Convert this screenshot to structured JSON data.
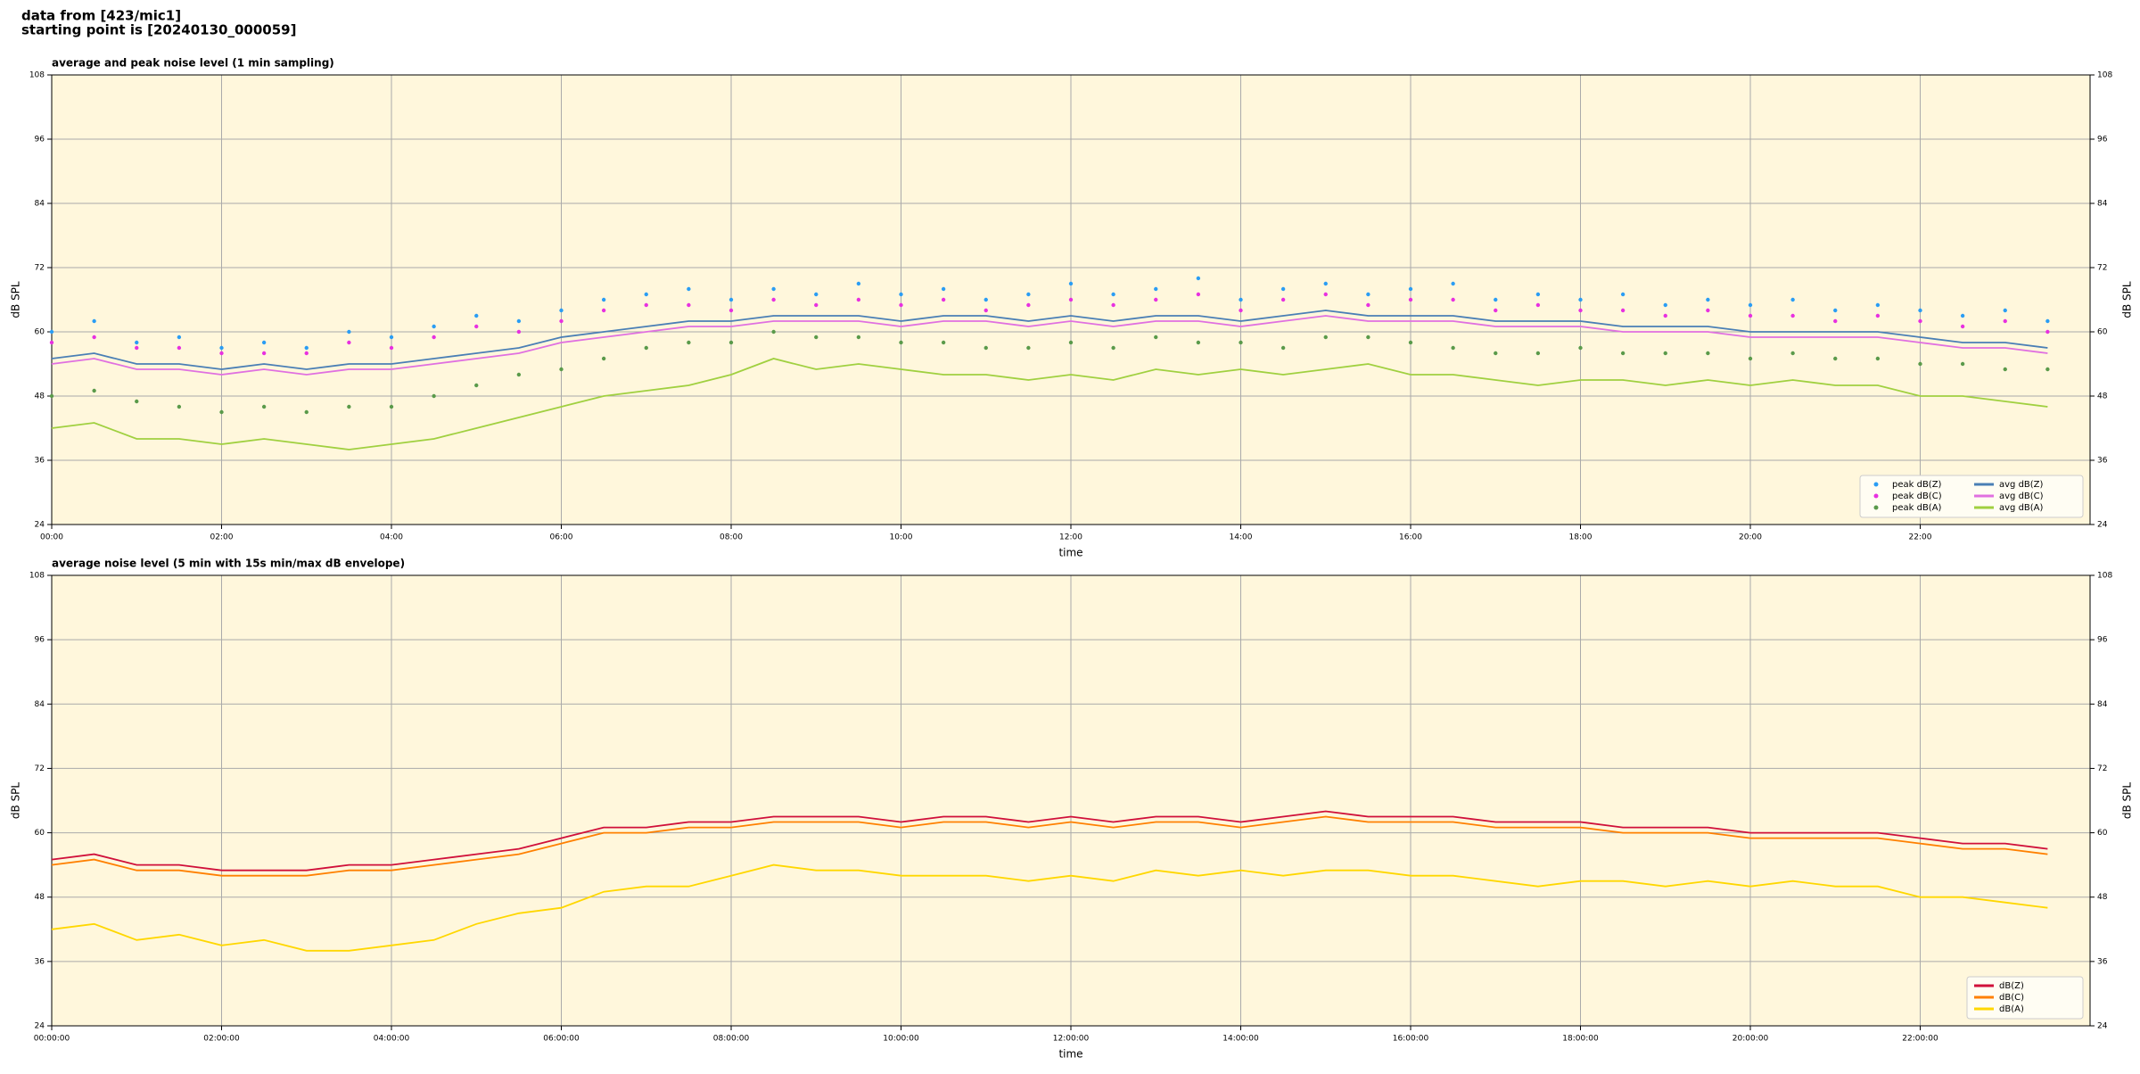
{
  "header": [
    "data from [423/mic1]",
    "starting point is [20240130_000059]"
  ],
  "chart_data": [
    {
      "type": "line",
      "title": "average and peak noise level (1 min sampling)",
      "xlabel": "time",
      "ylabel": "dB SPL",
      "x": [
        "00:00",
        "00:30",
        "01:00",
        "01:30",
        "02:00",
        "02:30",
        "03:00",
        "03:30",
        "04:00",
        "04:30",
        "05:00",
        "05:30",
        "06:00",
        "06:30",
        "07:00",
        "07:30",
        "08:00",
        "08:30",
        "09:00",
        "09:30",
        "10:00",
        "10:30",
        "11:00",
        "11:30",
        "12:00",
        "12:30",
        "13:00",
        "13:30",
        "14:00",
        "14:30",
        "15:00",
        "15:30",
        "16:00",
        "16:30",
        "17:00",
        "17:30",
        "18:00",
        "18:30",
        "19:00",
        "19:30",
        "20:00",
        "20:30",
        "21:00",
        "21:30",
        "22:00",
        "22:30",
        "23:00",
        "23:30"
      ],
      "xlim": [
        "00:00",
        "24:00"
      ],
      "xticks": [
        "00:00",
        "02:00",
        "04:00",
        "06:00",
        "08:00",
        "10:00",
        "12:00",
        "14:00",
        "16:00",
        "18:00",
        "20:00",
        "22:00"
      ],
      "ylim": [
        24,
        108
      ],
      "yticks": [
        24,
        36,
        48,
        60,
        72,
        84,
        96,
        108
      ],
      "grid": true,
      "legend": "lower right",
      "legend_columns": 2,
      "series": [
        {
          "name": "peak dB(Z)",
          "type": "scatter",
          "color": "#2a9df4",
          "values": [
            60,
            62,
            58,
            59,
            57,
            58,
            57,
            60,
            59,
            61,
            63,
            62,
            64,
            66,
            67,
            68,
            66,
            68,
            67,
            69,
            67,
            68,
            66,
            67,
            69,
            67,
            68,
            70,
            66,
            68,
            69,
            67,
            68,
            69,
            66,
            67,
            66,
            67,
            65,
            66,
            65,
            66,
            64,
            65,
            64,
            63,
            64,
            62
          ]
        },
        {
          "name": "peak dB(C)",
          "type": "scatter",
          "color": "#e830e0",
          "values": [
            58,
            59,
            57,
            57,
            56,
            56,
            56,
            58,
            57,
            59,
            61,
            60,
            62,
            64,
            65,
            65,
            64,
            66,
            65,
            66,
            65,
            66,
            64,
            65,
            66,
            65,
            66,
            67,
            64,
            66,
            67,
            65,
            66,
            66,
            64,
            65,
            64,
            64,
            63,
            64,
            63,
            63,
            62,
            63,
            62,
            61,
            62,
            60
          ]
        },
        {
          "name": "peak dB(A)",
          "type": "scatter",
          "color": "#5a9a4a",
          "values": [
            48,
            49,
            47,
            46,
            45,
            46,
            45,
            46,
            46,
            48,
            50,
            52,
            53,
            55,
            57,
            58,
            58,
            60,
            59,
            59,
            58,
            58,
            57,
            57,
            58,
            57,
            59,
            58,
            58,
            57,
            59,
            59,
            58,
            57,
            56,
            56,
            57,
            56,
            56,
            56,
            55,
            56,
            55,
            55,
            54,
            54,
            53,
            53
          ]
        },
        {
          "name": "avg dB(Z)",
          "type": "line",
          "color": "#4a7fb5",
          "values": [
            55,
            56,
            54,
            54,
            53,
            54,
            53,
            54,
            54,
            55,
            56,
            57,
            59,
            60,
            61,
            62,
            62,
            63,
            63,
            63,
            62,
            63,
            63,
            62,
            63,
            62,
            63,
            63,
            62,
            63,
            64,
            63,
            63,
            63,
            62,
            62,
            62,
            61,
            61,
            61,
            60,
            60,
            60,
            60,
            59,
            58,
            58,
            57
          ]
        },
        {
          "name": "avg dB(C)",
          "type": "line",
          "color": "#e070e0",
          "values": [
            54,
            55,
            53,
            53,
            52,
            53,
            52,
            53,
            53,
            54,
            55,
            56,
            58,
            59,
            60,
            61,
            61,
            62,
            62,
            62,
            61,
            62,
            62,
            61,
            62,
            61,
            62,
            62,
            61,
            62,
            63,
            62,
            62,
            62,
            61,
            61,
            61,
            60,
            60,
            60,
            59,
            59,
            59,
            59,
            58,
            57,
            57,
            56
          ]
        },
        {
          "name": "avg dB(A)",
          "type": "line",
          "color": "#a0d040",
          "values": [
            42,
            43,
            40,
            40,
            39,
            40,
            39,
            38,
            39,
            40,
            42,
            44,
            46,
            48,
            49,
            50,
            52,
            55,
            53,
            54,
            53,
            52,
            52,
            51,
            52,
            51,
            53,
            52,
            53,
            52,
            53,
            54,
            52,
            52,
            51,
            50,
            51,
            51,
            50,
            51,
            50,
            51,
            50,
            50,
            48,
            48,
            47,
            46
          ]
        }
      ]
    },
    {
      "type": "line",
      "title": "average noise level (5 min with 15s min/max dB envelope)",
      "xlabel": "time",
      "ylabel": "dB SPL",
      "x": [
        "00:00:00",
        "00:30:00",
        "01:00:00",
        "01:30:00",
        "02:00:00",
        "02:30:00",
        "03:00:00",
        "03:30:00",
        "04:00:00",
        "04:30:00",
        "05:00:00",
        "05:30:00",
        "06:00:00",
        "06:30:00",
        "07:00:00",
        "07:30:00",
        "08:00:00",
        "08:30:00",
        "09:00:00",
        "09:30:00",
        "10:00:00",
        "10:30:00",
        "11:00:00",
        "11:30:00",
        "12:00:00",
        "12:30:00",
        "13:00:00",
        "13:30:00",
        "14:00:00",
        "14:30:00",
        "15:00:00",
        "15:30:00",
        "16:00:00",
        "16:30:00",
        "17:00:00",
        "17:30:00",
        "18:00:00",
        "18:30:00",
        "19:00:00",
        "19:30:00",
        "20:00:00",
        "20:30:00",
        "21:00:00",
        "21:30:00",
        "22:00:00",
        "22:30:00",
        "23:00:00",
        "23:30:00"
      ],
      "xlim": [
        "00:00:00",
        "24:00:00"
      ],
      "xticks": [
        "00:00:00",
        "02:00:00",
        "04:00:00",
        "06:00:00",
        "08:00:00",
        "10:00:00",
        "12:00:00",
        "14:00:00",
        "16:00:00",
        "18:00:00",
        "20:00:00",
        "22:00:00"
      ],
      "ylim": [
        24,
        108
      ],
      "yticks": [
        24,
        36,
        48,
        60,
        72,
        84,
        96,
        108
      ],
      "grid": true,
      "legend": "lower right",
      "legend_columns": 1,
      "series": [
        {
          "name": "dB(Z)",
          "type": "line",
          "color": "#d0103a",
          "values": [
            55,
            56,
            54,
            54,
            53,
            53,
            53,
            54,
            54,
            55,
            56,
            57,
            59,
            61,
            61,
            62,
            62,
            63,
            63,
            63,
            62,
            63,
            63,
            62,
            63,
            62,
            63,
            63,
            62,
            63,
            64,
            63,
            63,
            63,
            62,
            62,
            62,
            61,
            61,
            61,
            60,
            60,
            60,
            60,
            59,
            58,
            58,
            57
          ]
        },
        {
          "name": "dB(C)",
          "type": "line",
          "color": "#ff8000",
          "values": [
            54,
            55,
            53,
            53,
            52,
            52,
            52,
            53,
            53,
            54,
            55,
            56,
            58,
            60,
            60,
            61,
            61,
            62,
            62,
            62,
            61,
            62,
            62,
            61,
            62,
            61,
            62,
            62,
            61,
            62,
            63,
            62,
            62,
            62,
            61,
            61,
            61,
            60,
            60,
            60,
            59,
            59,
            59,
            59,
            58,
            57,
            57,
            56
          ]
        },
        {
          "name": "dB(A)",
          "type": "line",
          "color": "#ffd700",
          "values": [
            42,
            43,
            40,
            41,
            39,
            40,
            38,
            38,
            39,
            40,
            43,
            45,
            46,
            49,
            50,
            50,
            52,
            54,
            53,
            53,
            52,
            52,
            52,
            51,
            52,
            51,
            53,
            52,
            53,
            52,
            53,
            53,
            52,
            52,
            51,
            50,
            51,
            51,
            50,
            51,
            50,
            51,
            50,
            50,
            48,
            48,
            47,
            46
          ]
        }
      ]
    }
  ]
}
